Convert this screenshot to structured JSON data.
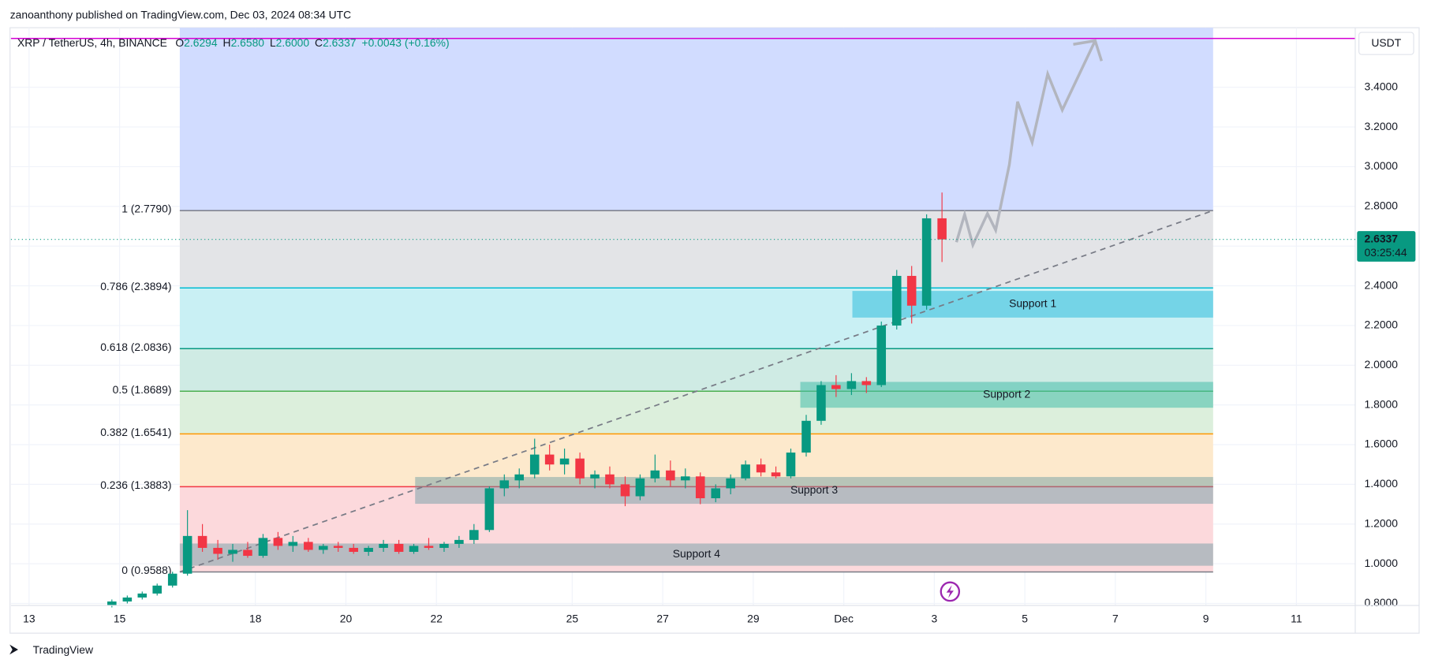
{
  "header": {
    "publisher": "zanoanthony published on TradingView.com, Dec 03, 2024 08:34 UTC",
    "brand": "TradingView"
  },
  "chart_data": {
    "type": "candlestick",
    "symbol": "XRP / TetherUS, 4h, BINANCE",
    "ohlc_labels": [
      "O",
      "H",
      "L",
      "C"
    ],
    "ohlc_values": [
      "2.6294",
      "2.6580",
      "2.6000",
      "2.6337"
    ],
    "change": "+0.0043 (+0.16%)",
    "currency": "USDT",
    "last_price": 2.6337,
    "last_price_label": "2.6337",
    "countdown": "03:25:44",
    "up_color": "#089981",
    "down_color": "#f23645",
    "xlim": [
      -0.4,
      29.3
    ],
    "ylim": [
      0.79,
      3.7
    ],
    "xticks": [
      {
        "value": 0,
        "label": "13"
      },
      {
        "value": 2,
        "label": "15"
      },
      {
        "value": 5,
        "label": "18"
      },
      {
        "value": 7,
        "label": "20"
      },
      {
        "value": 9,
        "label": "22"
      },
      {
        "value": 12,
        "label": "25"
      },
      {
        "value": 14,
        "label": "27"
      },
      {
        "value": 16,
        "label": "29"
      },
      {
        "value": 18,
        "label": "Dec"
      },
      {
        "value": 20,
        "label": "3"
      },
      {
        "value": 22,
        "label": "5"
      },
      {
        "value": 24,
        "label": "7"
      },
      {
        "value": 26,
        "label": "9"
      },
      {
        "value": 28,
        "label": "11"
      }
    ],
    "yticks": [
      {
        "value": 0.8,
        "label": "0.8000"
      },
      {
        "value": 1.0,
        "label": "1.0000"
      },
      {
        "value": 1.2,
        "label": "1.2000"
      },
      {
        "value": 1.4,
        "label": "1.4000"
      },
      {
        "value": 1.6,
        "label": "1.6000"
      },
      {
        "value": 1.8,
        "label": "1.8000"
      },
      {
        "value": 2.0,
        "label": "2.0000"
      },
      {
        "value": 2.2,
        "label": "2.2000"
      },
      {
        "value": 2.4,
        "label": "2.4000"
      },
      {
        "value": 2.6,
        "label": "2.6000"
      },
      {
        "value": 2.8,
        "label": "2.8000"
      },
      {
        "value": 3.0,
        "label": "3.0000"
      },
      {
        "value": 3.2,
        "label": "3.2000"
      },
      {
        "value": 3.4,
        "label": "3.4000"
      }
    ],
    "grid": true,
    "x": [
      1.83,
      2.17,
      2.5,
      2.83,
      3.17,
      3.5,
      3.83,
      4.17,
      4.5,
      4.83,
      5.17,
      5.5,
      5.83,
      6.17,
      6.5,
      6.83,
      7.17,
      7.5,
      7.83,
      8.17,
      8.5,
      8.83,
      9.17,
      9.5,
      9.83,
      10.17,
      10.5,
      10.83,
      11.17,
      11.5,
      11.83,
      12.17,
      12.5,
      12.83,
      13.17,
      13.5,
      13.83,
      14.17,
      14.5,
      14.83,
      15.17,
      15.5,
      15.83,
      16.17,
      16.5,
      16.83,
      17.17,
      17.5,
      17.83,
      18.17,
      18.5,
      18.83,
      19.17,
      19.5,
      19.83,
      20.17
    ],
    "ohlc": [
      [
        0.79,
        0.82,
        0.78,
        0.81
      ],
      [
        0.81,
        0.84,
        0.8,
        0.83
      ],
      [
        0.83,
        0.86,
        0.82,
        0.85
      ],
      [
        0.85,
        0.9,
        0.84,
        0.89
      ],
      [
        0.89,
        0.96,
        0.88,
        0.95
      ],
      [
        0.95,
        1.27,
        0.94,
        1.14
      ],
      [
        1.14,
        1.2,
        1.06,
        1.08
      ],
      [
        1.08,
        1.12,
        1.02,
        1.05
      ],
      [
        1.05,
        1.1,
        1.01,
        1.07
      ],
      [
        1.07,
        1.11,
        1.03,
        1.04
      ],
      [
        1.04,
        1.15,
        1.03,
        1.13
      ],
      [
        1.13,
        1.16,
        1.07,
        1.09
      ],
      [
        1.09,
        1.14,
        1.06,
        1.11
      ],
      [
        1.11,
        1.13,
        1.06,
        1.07
      ],
      [
        1.07,
        1.1,
        1.05,
        1.09
      ],
      [
        1.09,
        1.11,
        1.06,
        1.08
      ],
      [
        1.08,
        1.1,
        1.05,
        1.06
      ],
      [
        1.06,
        1.09,
        1.04,
        1.08
      ],
      [
        1.08,
        1.12,
        1.06,
        1.1
      ],
      [
        1.1,
        1.12,
        1.05,
        1.06
      ],
      [
        1.06,
        1.1,
        1.05,
        1.09
      ],
      [
        1.09,
        1.13,
        1.07,
        1.08
      ],
      [
        1.08,
        1.11,
        1.06,
        1.1
      ],
      [
        1.1,
        1.14,
        1.08,
        1.12
      ],
      [
        1.12,
        1.2,
        1.1,
        1.17
      ],
      [
        1.17,
        1.39,
        1.16,
        1.38
      ],
      [
        1.38,
        1.45,
        1.34,
        1.42
      ],
      [
        1.42,
        1.48,
        1.38,
        1.45
      ],
      [
        1.45,
        1.63,
        1.43,
        1.55
      ],
      [
        1.55,
        1.6,
        1.47,
        1.5
      ],
      [
        1.5,
        1.58,
        1.45,
        1.53
      ],
      [
        1.53,
        1.56,
        1.4,
        1.43
      ],
      [
        1.43,
        1.47,
        1.38,
        1.45
      ],
      [
        1.45,
        1.49,
        1.38,
        1.4
      ],
      [
        1.4,
        1.44,
        1.29,
        1.34
      ],
      [
        1.34,
        1.45,
        1.32,
        1.43
      ],
      [
        1.43,
        1.55,
        1.41,
        1.47
      ],
      [
        1.47,
        1.52,
        1.39,
        1.42
      ],
      [
        1.42,
        1.48,
        1.38,
        1.44
      ],
      [
        1.44,
        1.46,
        1.3,
        1.33
      ],
      [
        1.33,
        1.4,
        1.31,
        1.38
      ],
      [
        1.38,
        1.45,
        1.35,
        1.43
      ],
      [
        1.43,
        1.52,
        1.42,
        1.5
      ],
      [
        1.5,
        1.53,
        1.44,
        1.46
      ],
      [
        1.46,
        1.49,
        1.43,
        1.44
      ],
      [
        1.44,
        1.58,
        1.43,
        1.56
      ],
      [
        1.56,
        1.75,
        1.54,
        1.72
      ],
      [
        1.72,
        1.92,
        1.7,
        1.9
      ],
      [
        1.9,
        1.95,
        1.84,
        1.88
      ],
      [
        1.88,
        1.96,
        1.85,
        1.92
      ],
      [
        1.92,
        1.94,
        1.86,
        1.9
      ],
      [
        1.9,
        2.22,
        1.89,
        2.2
      ],
      [
        2.2,
        2.48,
        2.18,
        2.45
      ],
      [
        2.45,
        2.5,
        2.21,
        2.3
      ],
      [
        2.3,
        2.76,
        2.28,
        2.74
      ],
      [
        2.74,
        2.87,
        2.52,
        2.6337
      ]
    ],
    "fib": {
      "x_range": [
        3.33,
        26.16
      ],
      "levels": [
        {
          "label": "1 (2.7790)",
          "price": 2.779,
          "color": "#787b86",
          "zone_color": "#d1dcff"
        },
        {
          "label": "0.786 (2.3894)",
          "price": 2.3894,
          "color": "#00bcd4",
          "zone_color": "#e3e4e7"
        },
        {
          "label": "0.618 (2.0836)",
          "price": 2.0836,
          "color": "#089981",
          "zone_color": "#c9f0f4"
        },
        {
          "label": "0.5 (1.8689)",
          "price": 1.8689,
          "color": "#4caf50",
          "zone_color": "#cfebe4"
        },
        {
          "label": "0.382 (1.6541)",
          "price": 1.6541,
          "color": "#ff9800",
          "zone_color": "#dcefdc"
        },
        {
          "label": "0.236 (1.3883)",
          "price": 1.3883,
          "color": "#f23645",
          "zone_color": "#fde9cc"
        },
        {
          "label": "0 (0.9588)",
          "price": 0.9588,
          "color": "#787b86",
          "zone_color": "#fcd9dc"
        }
      ]
    },
    "resistance_line": 3.646,
    "trend_line": {
      "x": [
        3.33,
        26.16
      ],
      "y": [
        0.9588,
        2.779
      ]
    },
    "zones": [
      {
        "label": "Support 1",
        "x": [
          18.19,
          26.16
        ],
        "y": [
          2.24,
          2.374
        ],
        "color": "rgba(80,200,225,0.7)"
      },
      {
        "label": "Support 2",
        "x": [
          17.04,
          26.16
        ],
        "y": [
          1.786,
          1.916
        ],
        "color": "rgba(70,190,170,0.55)"
      },
      {
        "label": "Support 3",
        "x": [
          8.53,
          26.16
        ],
        "y": [
          1.302,
          1.437
        ],
        "color": "rgba(100,150,160,0.45)"
      },
      {
        "label": "Support 4",
        "x": [
          3.33,
          26.16
        ],
        "y": [
          0.99,
          1.102
        ],
        "color": "rgba(100,150,160,0.45)"
      }
    ]
  }
}
